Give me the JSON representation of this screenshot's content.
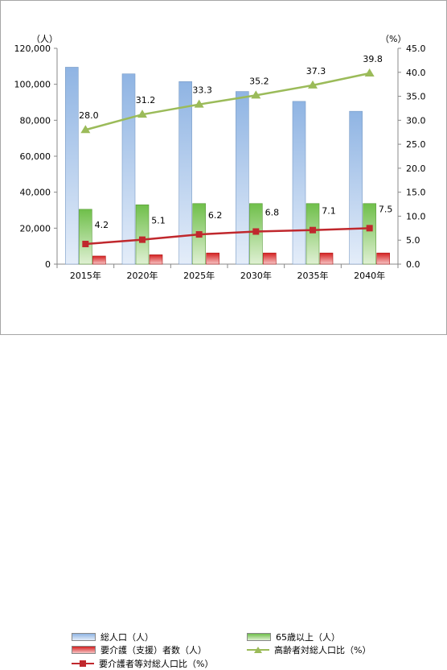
{
  "chart_data": {
    "type": "bar",
    "categories": [
      "2015年",
      "2020年",
      "2025年",
      "2030年",
      "2035年",
      "2040年"
    ],
    "left_axis": {
      "unit_label": "（人）",
      "ylim": [
        0,
        120000
      ],
      "ticks": [
        "0",
        "20,000",
        "40,000",
        "60,000",
        "80,000",
        "100,000",
        "120,000"
      ]
    },
    "right_axis": {
      "unit_label": "（%）",
      "ylim": [
        0,
        45
      ],
      "ticks": [
        "0.0",
        "5.0",
        "10.0",
        "15.0",
        "20.0",
        "25.0",
        "30.0",
        "35.0",
        "40.0",
        "45.0"
      ]
    },
    "series": [
      {
        "name": "総人口（人）",
        "type": "bar",
        "axis": "left",
        "color": "#8fb4e3",
        "values": [
          109500,
          105800,
          101500,
          96000,
          90500,
          85000
        ]
      },
      {
        "name": "65歳以上（人）",
        "type": "bar",
        "axis": "left",
        "color": "#7ec95a",
        "values": [
          30500,
          33000,
          33700,
          33700,
          33700,
          33700
        ]
      },
      {
        "name": "要介護（支援）者数（人）",
        "type": "bar",
        "axis": "left",
        "color": "#e03030",
        "values": [
          4500,
          5200,
          6200,
          6200,
          6200,
          6200
        ]
      },
      {
        "name": "高齢者対総人口比（%）",
        "type": "line",
        "axis": "right",
        "color": "#9bbb59",
        "marker": "triangle",
        "values": [
          28.0,
          31.2,
          33.3,
          35.2,
          37.3,
          39.8
        ],
        "labels": [
          "28.0",
          "31.2",
          "33.3",
          "35.2",
          "37.3",
          "39.8"
        ]
      },
      {
        "name": "要介護者等対総人口比（%）",
        "type": "line",
        "axis": "right",
        "color": "#c0282d",
        "marker": "square",
        "values": [
          4.2,
          5.1,
          6.2,
          6.8,
          7.1,
          7.5
        ],
        "labels": [
          "4.2",
          "5.1",
          "6.2",
          "6.8",
          "7.1",
          "7.5"
        ]
      }
    ],
    "legend_position": "bottom",
    "grid": false
  }
}
